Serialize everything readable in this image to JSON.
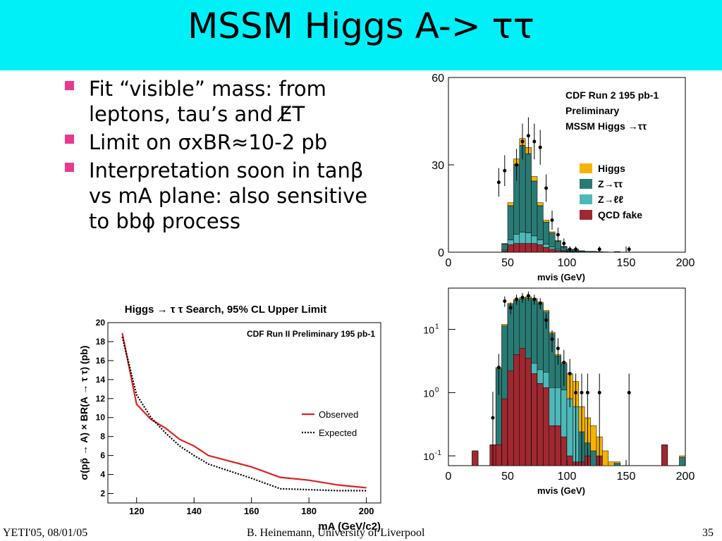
{
  "slide": {
    "title": "MSSM Higgs A-> ττ",
    "bullets": [
      "Fit “visible” mass: from leptons, tau’s and E̸T",
      "Limit on σxBR≈10-2 pb",
      "Interpretation soon in tanβ vs mA plane: also sensitive to bbϕ process"
    ],
    "footer_left": "YETI'05, 08/01/05",
    "footer_center": "B. Heinemann, University of Liverpool",
    "footer_right": "35",
    "accent_color": "#00f0f8",
    "bullet_color": "#e83a8c"
  },
  "chart_data": [
    {
      "type": "line",
      "title": "Higgs → τ τ Search, 95% CL Upper Limit",
      "annotation": "CDF Run II Preliminary 195 pb-1",
      "xlabel": "mA (GeV/c2)",
      "ylabel": "σ(pp̄ → A) × BR(A → τ τ) (pb)",
      "xlim": [
        110,
        205
      ],
      "ylim": [
        1,
        20
      ],
      "xticks": [
        120,
        140,
        160,
        180,
        200
      ],
      "yticks": [
        2,
        4,
        6,
        8,
        10,
        12,
        14,
        16,
        18,
        20
      ],
      "series": [
        {
          "name": "Observed",
          "color": "#e02020",
          "style": "solid",
          "x": [
            115,
            120,
            125,
            130,
            135,
            140,
            145,
            150,
            160,
            170,
            180,
            190,
            200
          ],
          "y": [
            18.9,
            11.4,
            9.8,
            8.9,
            7.7,
            7.0,
            6.0,
            5.6,
            4.8,
            3.7,
            3.4,
            2.9,
            2.6
          ]
        },
        {
          "name": "Expected",
          "color": "#000000",
          "style": "dotted",
          "x": [
            115,
            120,
            125,
            130,
            135,
            140,
            145,
            150,
            160,
            170,
            180,
            190,
            200
          ],
          "y": [
            18.5,
            12.4,
            10.0,
            8.4,
            7.0,
            6.0,
            5.1,
            4.6,
            3.6,
            2.5,
            2.4,
            2.3,
            2.3
          ]
        }
      ]
    },
    {
      "type": "bar",
      "scale": "linear",
      "annotation": [
        "CDF Run 2  195 pb-1",
        "Preliminary",
        "MSSM Higgs →ττ"
      ],
      "xlabel": "mvis (GeV)",
      "xlim": [
        0,
        200
      ],
      "ylim": [
        0,
        60
      ],
      "xticks": [
        0,
        50,
        100,
        150,
        200
      ],
      "yticks": [
        0,
        30,
        60
      ],
      "bin_width": 5,
      "bin_start": 25,
      "legend": [
        "Higgs",
        "Z→ττ",
        "Z→ℓℓ",
        "QCD fake"
      ],
      "colors": {
        "Higgs": "#f5b400",
        "Z→ττ": "#2a7a74",
        "Z→ℓℓ": "#4fb8b8",
        "QCD fake": "#a02830"
      },
      "stack_totals": [
        0,
        0,
        0,
        0,
        3,
        17,
        32,
        39,
        36,
        26,
        17,
        11,
        7,
        4,
        2,
        1,
        1,
        0.5,
        0.3,
        0.3,
        0.2,
        0.1,
        0,
        0.2,
        0,
        0,
        0,
        0,
        0,
        0,
        0,
        0,
        0,
        0,
        0
      ],
      "data_x": [
        42.5,
        47.5,
        57.5,
        62.5,
        67.5,
        72.5,
        77.5,
        82.5,
        87.5,
        92.5,
        97.5,
        102.5,
        107.5,
        127.5,
        152.5
      ],
      "data_y": [
        24,
        28,
        30,
        38,
        40,
        38,
        36,
        22,
        11,
        6,
        3,
        1,
        1,
        1,
        1
      ]
    },
    {
      "type": "bar",
      "scale": "log",
      "xlabel": "mvis (GeV)",
      "xlim": [
        0,
        200
      ],
      "ylim": [
        0.07,
        45
      ],
      "xticks": [
        0,
        50,
        100,
        150,
        200
      ],
      "yticks": [
        "10^-1",
        "10^0",
        "10^1"
      ],
      "data_x": [
        37.5,
        42.5,
        47.5,
        52.5,
        57.5,
        62.5,
        67.5,
        72.5,
        77.5,
        82.5,
        87.5,
        92.5,
        97.5,
        102.5,
        107.5,
        112.5,
        117.5,
        127.5,
        152.5
      ],
      "data_y": [
        0.4,
        2.5,
        28,
        22,
        30,
        32,
        34,
        30,
        26,
        14,
        7,
        5,
        3,
        2,
        1,
        1,
        1,
        1,
        1
      ]
    }
  ]
}
